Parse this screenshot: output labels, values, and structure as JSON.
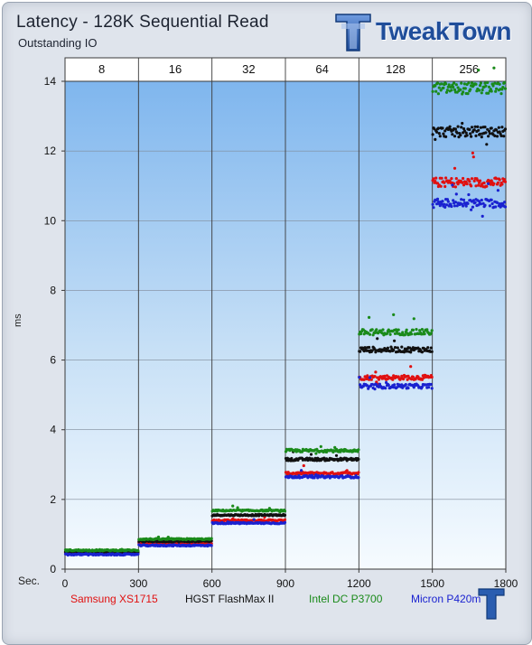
{
  "title": "Latency - 128K Sequential Read",
  "subtitle": "Outstanding IO",
  "logo_text": "TweakTown",
  "ylabel": "ms",
  "xlabel_prefix": "Sec.",
  "chart_data": {
    "type": "scatter",
    "xlim": [
      0,
      1800
    ],
    "ylim": [
      0,
      14
    ],
    "x_ticks": [
      0,
      300,
      600,
      900,
      1200,
      1500,
      1800
    ],
    "y_ticks": [
      0,
      2,
      4,
      6,
      8,
      10,
      12,
      14
    ],
    "grid": true,
    "legend": "bottom",
    "top_axis": {
      "label": "Outstanding IO",
      "segments": [
        "8",
        "16",
        "32",
        "64",
        "128",
        "256"
      ]
    },
    "series": [
      {
        "name": "Samsung XS1715",
        "color": "#e01010",
        "segments": [
          {
            "x": [
              0,
              300
            ],
            "mean": 0.47
          },
          {
            "x": [
              300,
              600
            ],
            "mean": 0.74
          },
          {
            "x": [
              600,
              900
            ],
            "mean": 1.4
          },
          {
            "x": [
              900,
              1200
            ],
            "mean": 2.75
          },
          {
            "x": [
              1200,
              1500
            ],
            "mean": 5.5
          },
          {
            "x": [
              1500,
              1800
            ],
            "mean": 11.1
          }
        ]
      },
      {
        "name": "HGST FlashMax II",
        "color": "#111111",
        "segments": [
          {
            "x": [
              0,
              300
            ],
            "mean": 0.5
          },
          {
            "x": [
              300,
              600
            ],
            "mean": 0.8
          },
          {
            "x": [
              600,
              900
            ],
            "mean": 1.55
          },
          {
            "x": [
              900,
              1200
            ],
            "mean": 3.15
          },
          {
            "x": [
              1200,
              1500
            ],
            "mean": 6.3
          },
          {
            "x": [
              1500,
              1800
            ],
            "mean": 12.55
          }
        ]
      },
      {
        "name": "Intel DC P3700",
        "color": "#1a8a1a",
        "segments": [
          {
            "x": [
              0,
              300
            ],
            "mean": 0.54
          },
          {
            "x": [
              300,
              600
            ],
            "mean": 0.86
          },
          {
            "x": [
              600,
              900
            ],
            "mean": 1.68
          },
          {
            "x": [
              900,
              1200
            ],
            "mean": 3.4
          },
          {
            "x": [
              1200,
              1500
            ],
            "mean": 6.8
          },
          {
            "x": [
              1500,
              1800
            ],
            "mean": 13.8
          }
        ]
      },
      {
        "name": "Micron P420m",
        "color": "#1a22d0",
        "segments": [
          {
            "x": [
              0,
              300
            ],
            "mean": 0.42
          },
          {
            "x": [
              300,
              600
            ],
            "mean": 0.68
          },
          {
            "x": [
              600,
              900
            ],
            "mean": 1.32
          },
          {
            "x": [
              900,
              1200
            ],
            "mean": 2.65
          },
          {
            "x": [
              1200,
              1500
            ],
            "mean": 5.25
          },
          {
            "x": [
              1500,
              1800
            ],
            "mean": 10.5
          }
        ]
      }
    ]
  }
}
